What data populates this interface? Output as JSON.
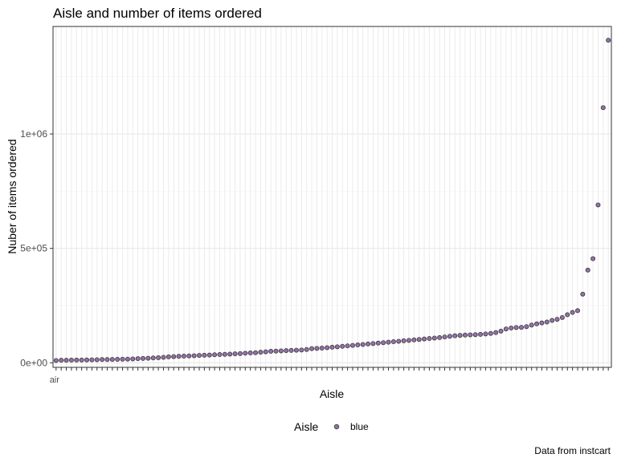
{
  "chart_data": {
    "type": "scatter",
    "title": "Aisle and number of items ordered",
    "xlabel": "Aisle",
    "ylabel": "Nuber of items ordered",
    "caption": "Data from instcart",
    "first_tick_label": "air fresheners candles",
    "ylim": [
      -20000,
      1470000
    ],
    "y_ticks": [
      0,
      500000,
      1000000
    ],
    "y_tick_labels": [
      "0e+00",
      "5e+05",
      "1e+06"
    ],
    "grid": true,
    "legend": {
      "title": "Aisle",
      "label": "blue",
      "placement": "bottom",
      "color": "#9370a8"
    },
    "point_color": "#9370a8",
    "point_stroke": "#3a3a3a",
    "values": [
      10000,
      11000,
      11000,
      11500,
      12000,
      12000,
      12500,
      13000,
      13500,
      14000,
      14000,
      14500,
      15000,
      15500,
      16000,
      17000,
      18000,
      19000,
      20000,
      21000,
      22000,
      24000,
      26000,
      27000,
      28000,
      29000,
      30000,
      31000,
      32000,
      33000,
      34000,
      35000,
      36000,
      37000,
      38000,
      39000,
      40000,
      42000,
      43000,
      44000,
      46000,
      48000,
      50000,
      51000,
      52000,
      53000,
      54000,
      55000,
      56000,
      58000,
      62000,
      63000,
      64000,
      66000,
      68000,
      70000,
      72000,
      74000,
      76000,
      78000,
      80000,
      82000,
      84000,
      86000,
      88000,
      90000,
      92000,
      94000,
      96000,
      98000,
      100000,
      102000,
      104000,
      106000,
      108000,
      110000,
      113000,
      116000,
      118000,
      120000,
      121000,
      122000,
      123000,
      124000,
      126000,
      128000,
      132000,
      138000,
      148000,
      152000,
      154000,
      155000,
      158000,
      165000,
      170000,
      174000,
      178000,
      185000,
      190000,
      198000,
      210000,
      220000,
      228000,
      300000,
      405000,
      455000,
      690000,
      1115000,
      1410000
    ]
  }
}
